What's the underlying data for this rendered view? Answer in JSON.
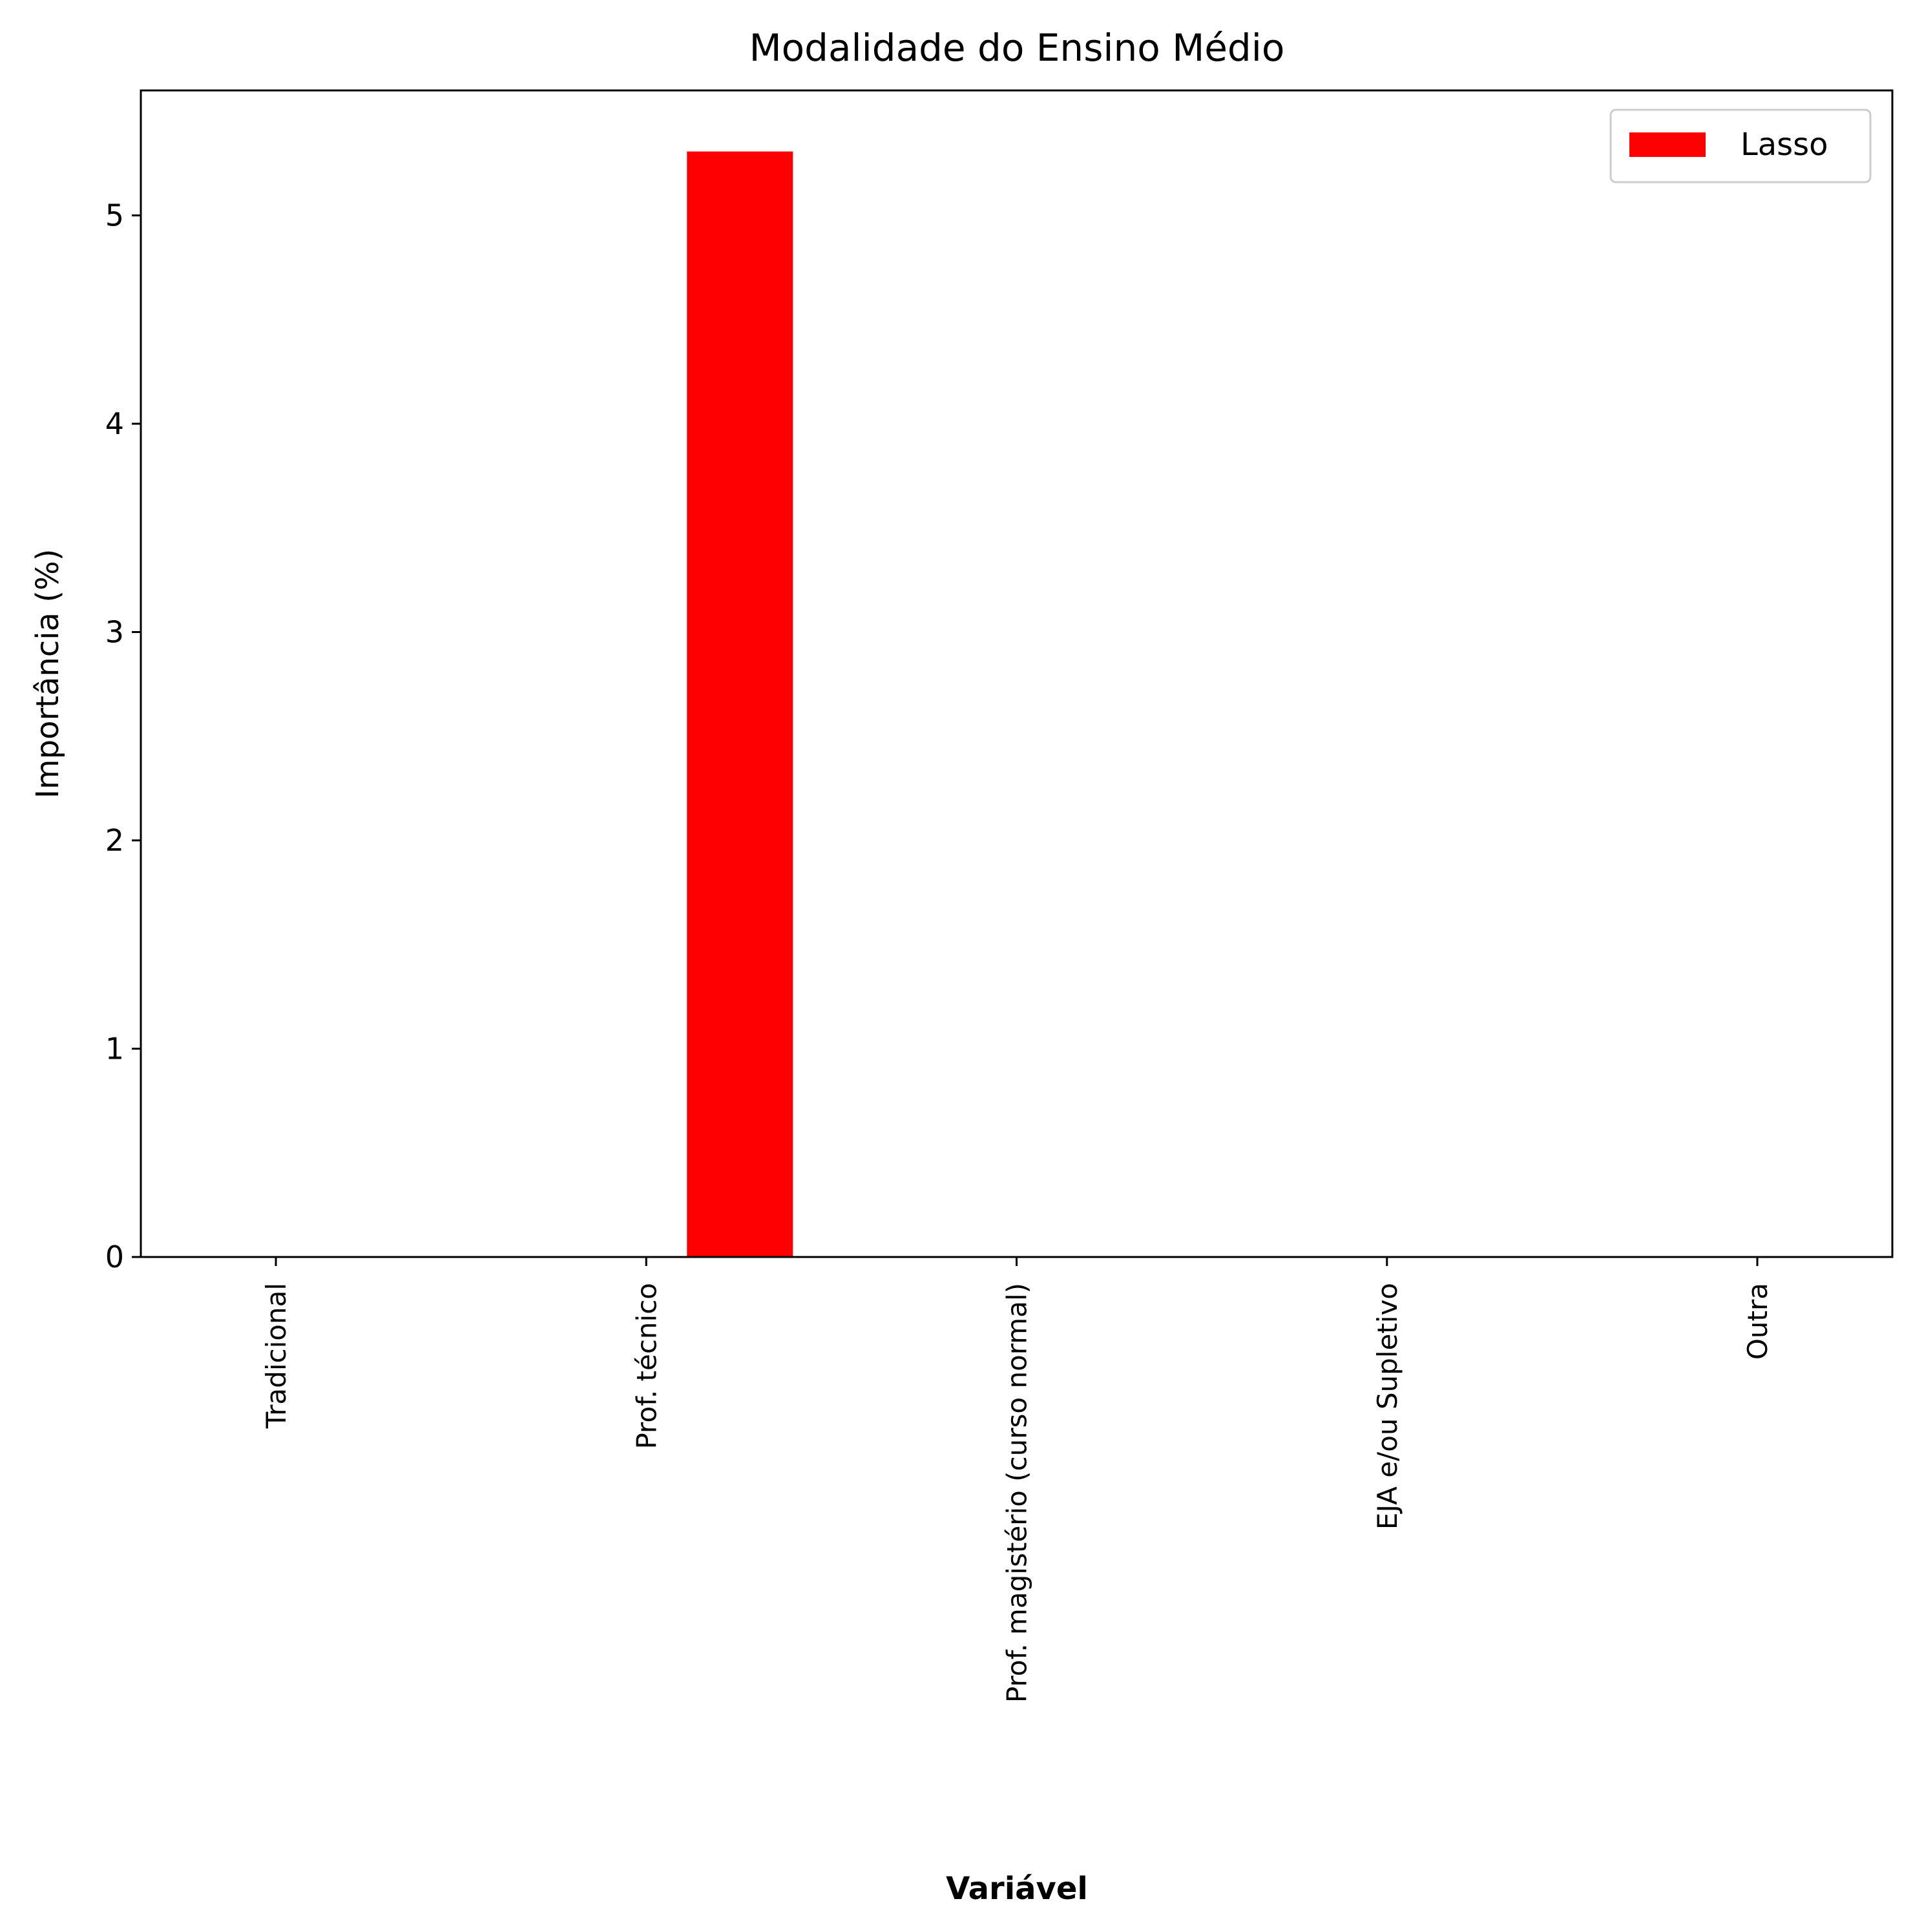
{
  "chart_data": {
    "type": "bar",
    "title": "Modalidade do Ensino Médio",
    "xlabel": "Variável",
    "ylabel": "Importância (%)",
    "categories": [
      "Tradicional",
      "Prof. técnico",
      "Prof. magistério (curso normal)",
      "EJA e/ou Supletivo",
      "Outra"
    ],
    "series": [
      {
        "name": "Lasso",
        "values": [
          0,
          5.31,
          0,
          0,
          0
        ],
        "color": "#ff0000"
      }
    ],
    "ylim": [
      0,
      5.6
    ],
    "yticks": [
      0,
      1,
      2,
      3,
      4,
      5
    ],
    "xtick_rotation": "vertical",
    "grid": false,
    "legend_position": "top-right"
  }
}
